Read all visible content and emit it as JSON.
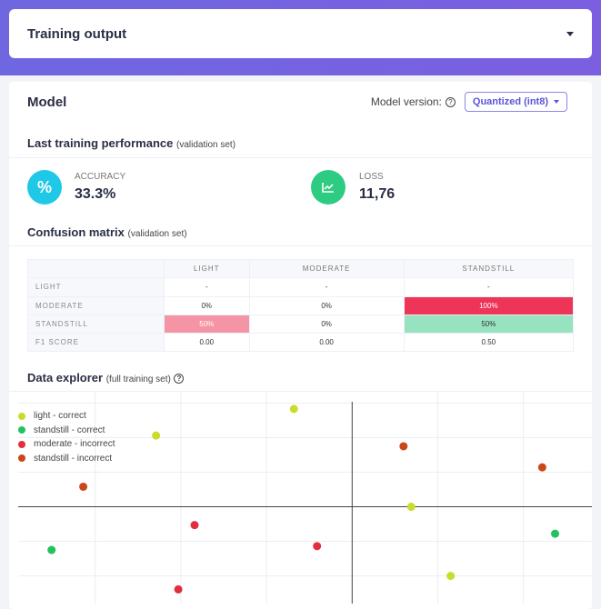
{
  "header": {
    "title": "Training output"
  },
  "model": {
    "title": "Model",
    "version_label": "Model version:",
    "version_value": "Quantized (int8)"
  },
  "performance": {
    "title": "Last training performance",
    "subtitle": "(validation set)",
    "accuracy": {
      "label": "ACCURACY",
      "value": "33.3%",
      "icon": "percent-icon",
      "color": "#1fc8e6"
    },
    "loss": {
      "label": "LOSS",
      "value": "11,76",
      "icon": "chart-line-icon",
      "color": "#2ecc82"
    }
  },
  "confusion": {
    "title": "Confusion matrix",
    "subtitle": "(validation set)",
    "columns": [
      "LIGHT",
      "MODERATE",
      "STANDSTILL"
    ],
    "rows": [
      {
        "label": "LIGHT",
        "cells": [
          "-",
          "-",
          "-"
        ]
      },
      {
        "label": "MODERATE",
        "cells": [
          "0%",
          "0%",
          "100%"
        ]
      },
      {
        "label": "STANDSTILL",
        "cells": [
          "50%",
          "0%",
          "50%"
        ]
      }
    ],
    "f1": {
      "label": "F1 SCORE",
      "cells": [
        "0.00",
        "0.00",
        "0.50"
      ]
    }
  },
  "explorer": {
    "title": "Data explorer",
    "subtitle": "(full training set)"
  },
  "chart_data": {
    "type": "scatter",
    "xlim": [
      -3.9,
      2.8
    ],
    "ylim": [
      -2.8,
      3.3
    ],
    "grid": true,
    "legend": "top-left",
    "series": [
      {
        "name": "light - correct",
        "color": "#c8dc2a",
        "points": [
          [
            -0.68,
            2.83
          ],
          [
            -2.29,
            2.06
          ],
          [
            0.69,
            0
          ],
          [
            1.15,
            -2.0
          ]
        ]
      },
      {
        "name": "standstill - correct",
        "color": "#22c25e",
        "points": [
          [
            -3.51,
            -1.25
          ],
          [
            2.37,
            -0.78
          ]
        ]
      },
      {
        "name": "moderate - incorrect",
        "color": "#e0303f",
        "points": [
          [
            -1.84,
            -0.53
          ],
          [
            -0.41,
            -1.14
          ],
          [
            -2.03,
            -2.39
          ]
        ]
      },
      {
        "name": "standstill - incorrect",
        "color": "#c9471a",
        "points": [
          [
            -3.14,
            0.58
          ],
          [
            0.6,
            1.75
          ],
          [
            2.22,
            1.14
          ]
        ]
      }
    ]
  }
}
